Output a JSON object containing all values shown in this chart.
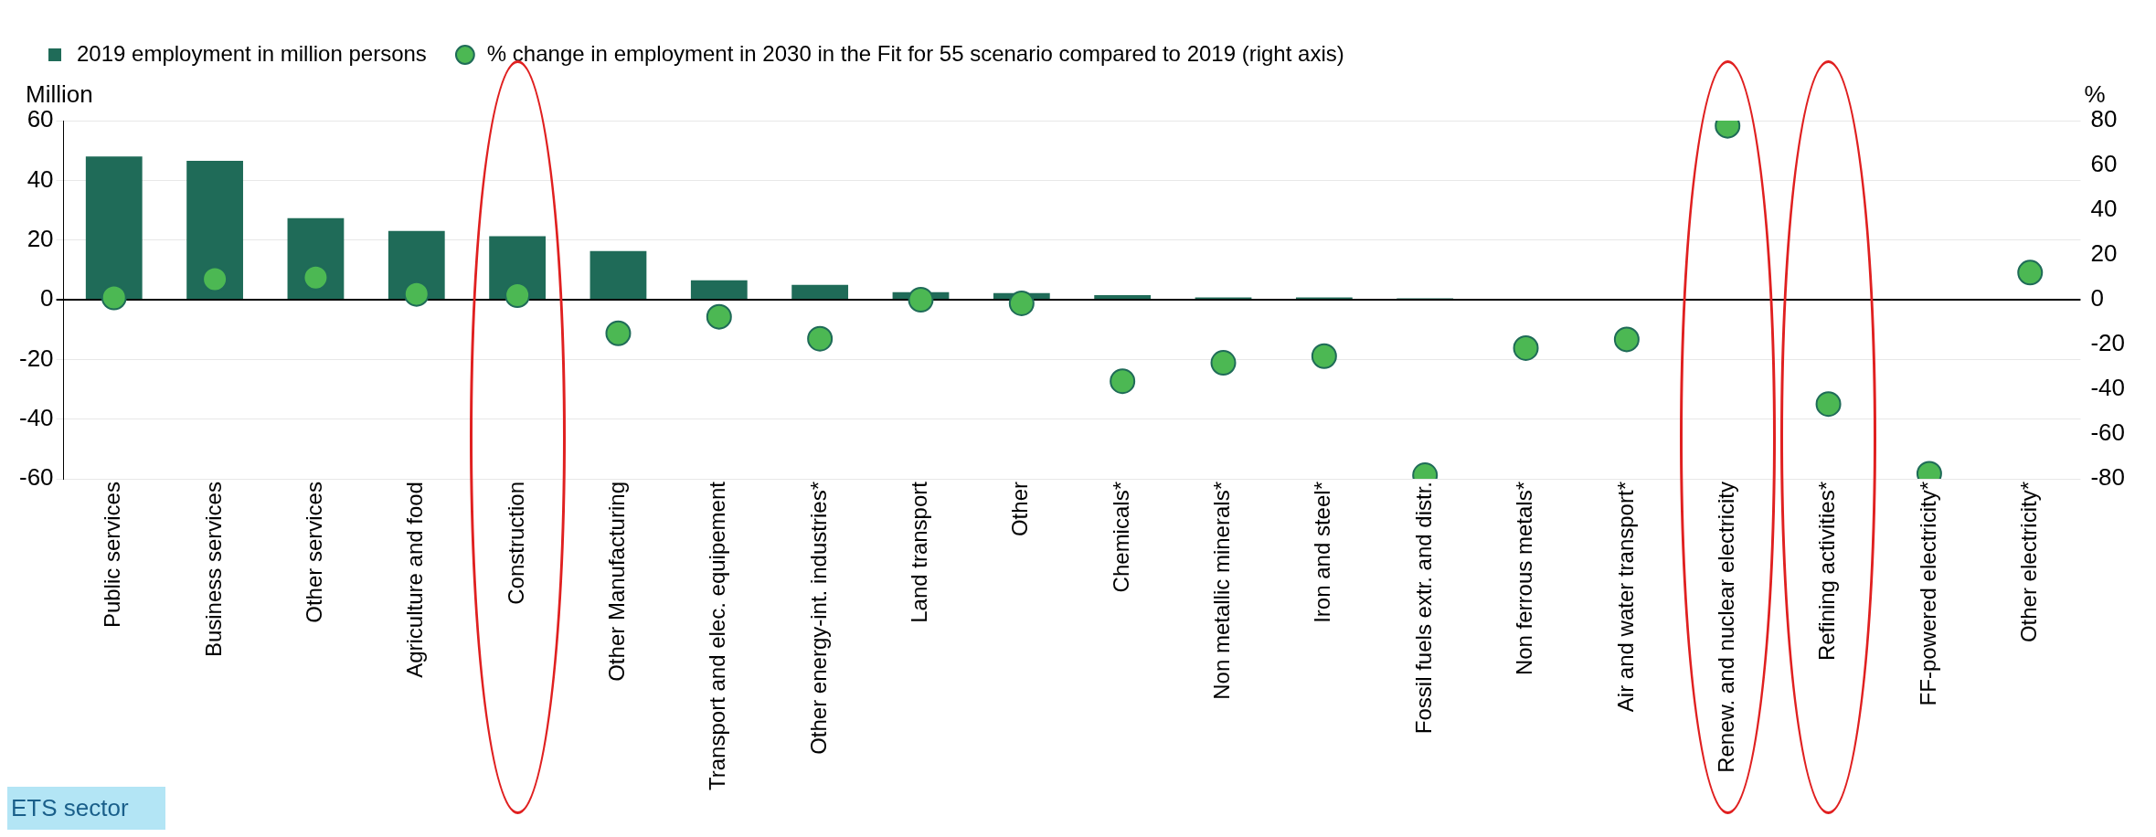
{
  "chart_data": {
    "type": "bar",
    "categories": [
      "Public services",
      "Business services",
      "Other services",
      "Agriculture and food",
      "Construction",
      "Other Manufacturing",
      "Transport and elec. equipement",
      "Other energy-int. industries*",
      "Land transport",
      "Other",
      "Chemicals*",
      "Non metallic minerals*",
      "Iron and steel*",
      "Fossil fuels extr. and distr.",
      "Non ferrous metals*",
      "Air and water transport*",
      "Renew. and nuclear electricity",
      "Refining activities*",
      "FF-powered electricity*",
      "Other electricity*"
    ],
    "series": [
      {
        "name": "2019 employment in million persons",
        "color": "#1f6b58",
        "values": [
          48,
          46.5,
          27.3,
          23,
          21.3,
          16.3,
          6.5,
          5,
          2.5,
          2.2,
          1.5,
          0.8,
          0.8,
          0.5,
          0.3,
          null,
          null,
          null,
          null,
          null
        ]
      },
      {
        "name": "% change in employment in 2030 in the Fit for 55 scenario compared to 2019 (right axis)",
        "type": "scatter",
        "axis": "y2",
        "color": "#4cb853",
        "marker": "circle",
        "values": [
          1,
          9.2,
          9.9,
          2.6,
          2,
          -15,
          -7.6,
          -17.4,
          0,
          -1.6,
          -36.4,
          -28.2,
          -25.2,
          -78.4,
          -21.6,
          -17.7,
          77.7,
          -46.6,
          -77.7,
          12.1
        ]
      }
    ],
    "ylabel": "Million",
    "y2label": "%",
    "ylim": [
      -60,
      60
    ],
    "yticks": [
      -60,
      -40,
      -20,
      0,
      20,
      40,
      60
    ],
    "y2lim": [
      -80,
      80
    ],
    "y2ticks": [
      -80,
      -60,
      -40,
      -20,
      0,
      20,
      40,
      60,
      80
    ],
    "grid": "y",
    "legend": "top",
    "annotations": [
      "ETS sector"
    ]
  }
}
